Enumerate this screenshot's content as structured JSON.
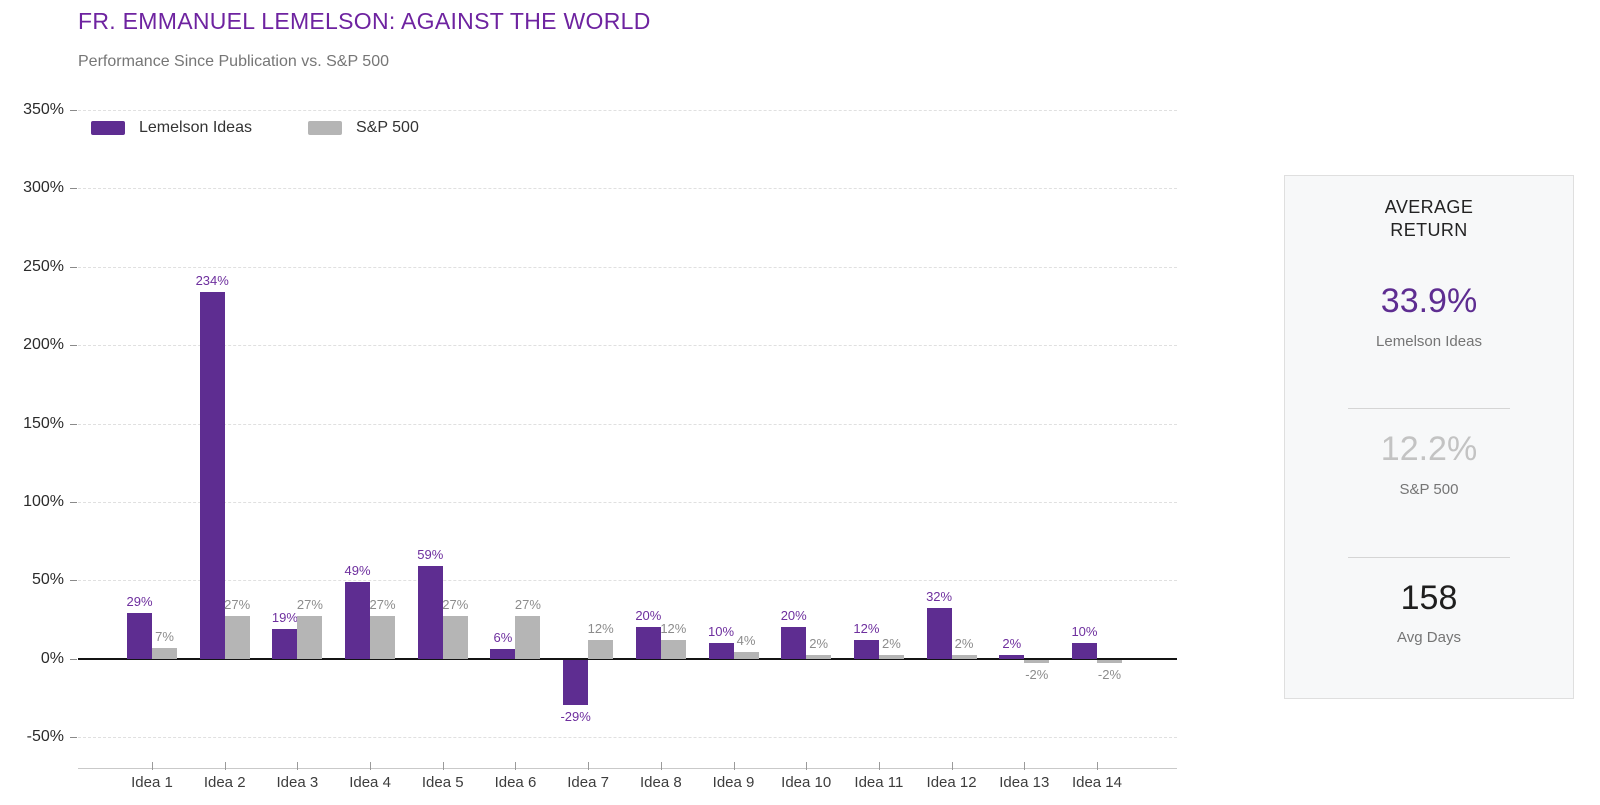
{
  "chart_data": {
    "type": "bar",
    "title": "FR. EMMANUEL LEMELSON: AGAINST THE WORLD",
    "subtitle": "Performance Since Publication vs. S&P 500",
    "categories": [
      "Idea 1",
      "Idea 2",
      "Idea 3",
      "Idea 4",
      "Idea 5",
      "Idea 6",
      "Idea 7",
      "Idea 8",
      "Idea 9",
      "Idea 10",
      "Idea 11",
      "Idea 12",
      "Idea 13",
      "Idea 14"
    ],
    "series": [
      {
        "name": "Lemelson Ideas",
        "color": "#5E2D91",
        "label_color": "#6E2F9E",
        "values": [
          29,
          234,
          19,
          49,
          59,
          6,
          -29,
          20,
          10,
          20,
          12,
          32,
          2,
          10
        ]
      },
      {
        "name": "S&P 500",
        "color": "#B5B5B5",
        "label_color": "#8C8C8C",
        "values": [
          7,
          27,
          27,
          27,
          27,
          27,
          12,
          12,
          4,
          2,
          2,
          2,
          -2,
          -2
        ]
      }
    ],
    "ylim": [
      -50,
      350
    ],
    "ytick_step": 50,
    "ytick_suffix": "%",
    "value_label_suffix": "%",
    "grid": "dashed-horizontal",
    "legend_position": "top-left",
    "value_labels": true
  },
  "summary_panel": {
    "title": "AVERAGE RETURN",
    "stats": [
      {
        "value": "33.9%",
        "label": "Lemelson Ideas",
        "color": "#5E2D91"
      },
      {
        "value": "12.2%",
        "label": "S&P 500",
        "color": "#C3C3C3"
      },
      {
        "value": "158",
        "label": "Avg Days",
        "color": "#1E1E1E"
      }
    ]
  }
}
